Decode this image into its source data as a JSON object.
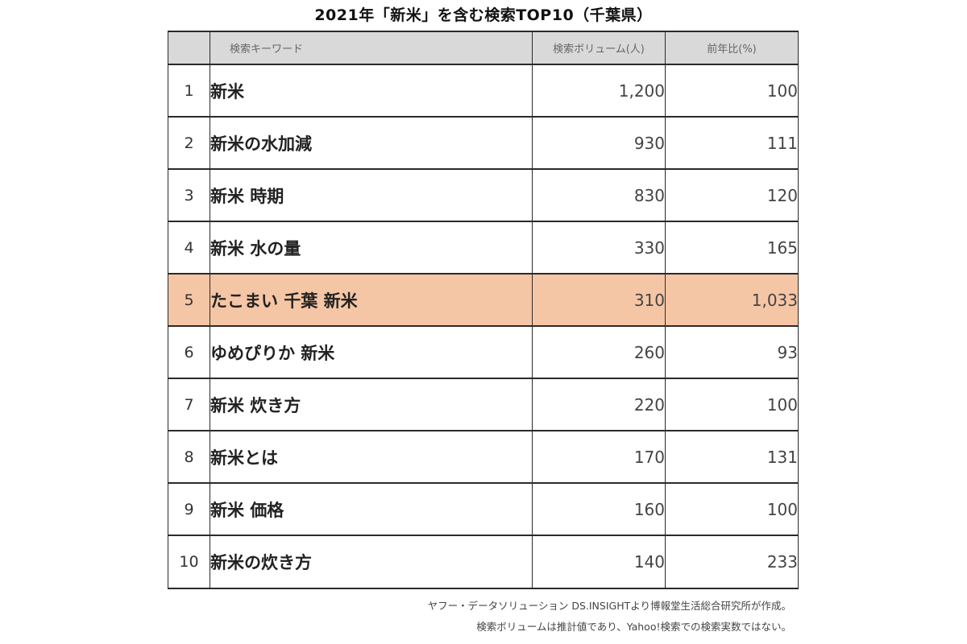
{
  "title": "2021年「新米」を含む検索TOP10（千葉県）",
  "table": {
    "headers": {
      "rank": "",
      "keyword": "検索キーワード",
      "volume": "検索ボリューム(人)",
      "yoy": "前年比(%)"
    },
    "highlight_color": "#f5c6a5",
    "header_bg": "#d9d9d9",
    "rows": [
      {
        "rank": "1",
        "keyword": "新米",
        "volume": "1,200",
        "yoy": "100",
        "highlight": false
      },
      {
        "rank": "2",
        "keyword": "新米の水加減",
        "volume": "930",
        "yoy": "111",
        "highlight": false
      },
      {
        "rank": "3",
        "keyword": "新米 時期",
        "volume": "830",
        "yoy": "120",
        "highlight": false
      },
      {
        "rank": "4",
        "keyword": "新米 水の量",
        "volume": "330",
        "yoy": "165",
        "highlight": false
      },
      {
        "rank": "5",
        "keyword": "たこまい 千葉 新米",
        "volume": "310",
        "yoy": "1,033",
        "highlight": true
      },
      {
        "rank": "6",
        "keyword": "ゆめぴりか 新米",
        "volume": "260",
        "yoy": "93",
        "highlight": false
      },
      {
        "rank": "7",
        "keyword": "新米 炊き方",
        "volume": "220",
        "yoy": "100",
        "highlight": false
      },
      {
        "rank": "8",
        "keyword": "新米とは",
        "volume": "170",
        "yoy": "131",
        "highlight": false
      },
      {
        "rank": "9",
        "keyword": "新米 価格",
        "volume": "160",
        "yoy": "100",
        "highlight": false
      },
      {
        "rank": "10",
        "keyword": "新米の炊き方",
        "volume": "140",
        "yoy": "233",
        "highlight": false
      }
    ]
  },
  "notes": {
    "source": "ヤフー・データソリューション DS.INSIGHTより博報堂生活総合研究所が作成。",
    "disclaimer": "検索ボリュームは推計値であり、Yahoo!検索での検索実数ではない。"
  }
}
